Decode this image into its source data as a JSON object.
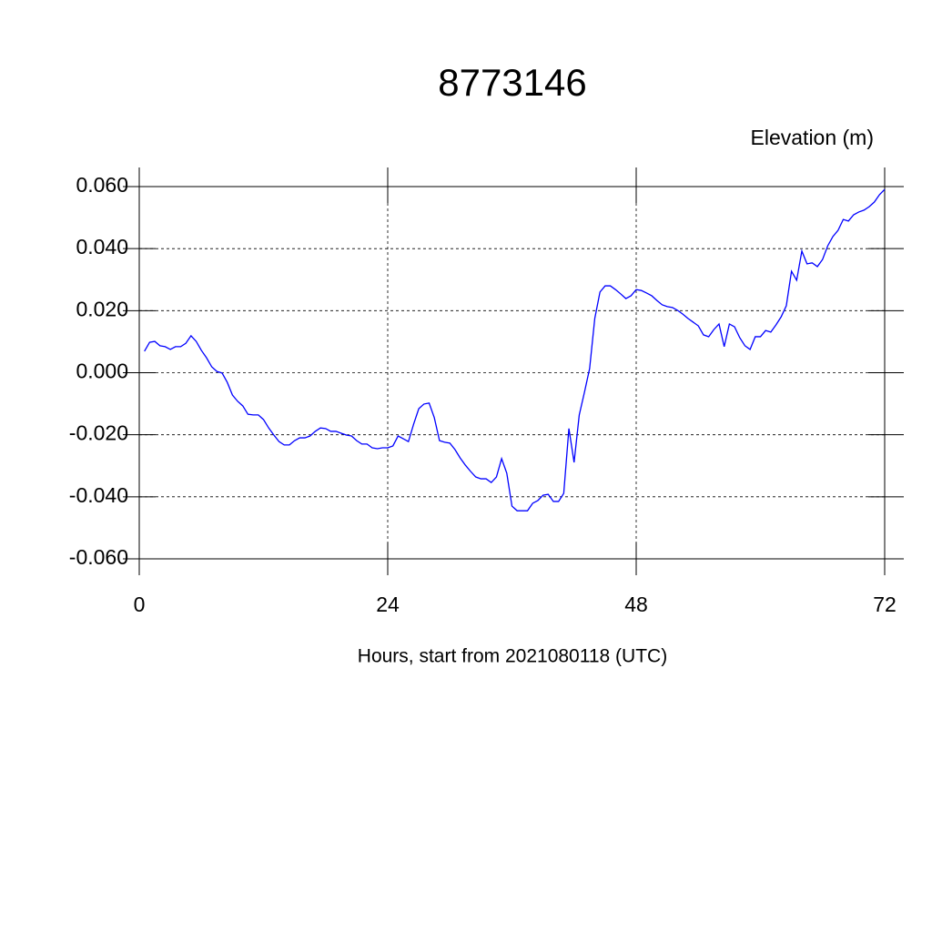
{
  "chart_data": {
    "type": "line",
    "title": "8773146",
    "y_label": "Elevation (m)",
    "x_label": "Hours, start from 2021080118 (UTC)",
    "xlim": [
      0,
      72
    ],
    "xticks": [
      0,
      24,
      48,
      72
    ],
    "ylim": [
      -0.06,
      0.06
    ],
    "yticks": [
      {
        "value": -0.06,
        "label": "-0.060"
      },
      {
        "value": -0.04,
        "label": "-0.040"
      },
      {
        "value": -0.02,
        "label": "-0.020"
      },
      {
        "value": 0,
        "label": "0.000"
      },
      {
        "value": 0.02,
        "label": "0.020"
      },
      {
        "value": 0.04,
        "label": "0.040"
      },
      {
        "value": 0.06,
        "label": "0.060"
      }
    ],
    "grid": true,
    "color": "#0000ff",
    "x": [
      0.5,
      1,
      1.5,
      2,
      2.5,
      3,
      3.5,
      4,
      4.5,
      5,
      5.5,
      6,
      6.5,
      7,
      7.5,
      8,
      8.5,
      9,
      9.5,
      10,
      10.5,
      11,
      11.5,
      12,
      12.5,
      13,
      13.5,
      14,
      14.5,
      15,
      15.5,
      16,
      16.5,
      17,
      17.5,
      18,
      18.5,
      19,
      19.5,
      20,
      20.5,
      21,
      21.5,
      22,
      22.5,
      23,
      23.5,
      24,
      24.5,
      25,
      25.5,
      26,
      26.5,
      27,
      27.5,
      28,
      28.5,
      29,
      29.5,
      30,
      30.5,
      31,
      31.5,
      32,
      32.5,
      33,
      33.5,
      34,
      34.5,
      35,
      35.5,
      36,
      36.5,
      37,
      37.5,
      38,
      38.5,
      39,
      39.5,
      40,
      40.5,
      41,
      41.5,
      42,
      42.5,
      43,
      43.5,
      44,
      44.5,
      45,
      45.5,
      46,
      46.5,
      47,
      47.5,
      48,
      48.5,
      49,
      49.5,
      50,
      50.5,
      51,
      51.5,
      52,
      52.5,
      53,
      53.5,
      54,
      54.5,
      55,
      55.5,
      56,
      56.5,
      57,
      57.5,
      58,
      58.5,
      59,
      59.5,
      60,
      60.5,
      61,
      61.5,
      62,
      62.5,
      63,
      63.5,
      64,
      64.5,
      65,
      65.5,
      66,
      66.5,
      67,
      67.5,
      68,
      68.5,
      69,
      69.5,
      70,
      70.5,
      71,
      71.5,
      72
    ],
    "values": [
      0.0069,
      0.0098,
      0.0101,
      0.0087,
      0.0084,
      0.0075,
      0.0084,
      0.0084,
      0.0095,
      0.0119,
      0.0101,
      0.0072,
      0.0048,
      0.0019,
      0.0004,
      -0.0001,
      -0.0031,
      -0.0072,
      -0.0092,
      -0.0107,
      -0.0134,
      -0.0136,
      -0.0136,
      -0.0151,
      -0.0178,
      -0.0201,
      -0.0222,
      -0.0233,
      -0.0233,
      -0.0219,
      -0.021,
      -0.021,
      -0.0204,
      -0.0189,
      -0.0178,
      -0.018,
      -0.0189,
      -0.0189,
      -0.0195,
      -0.0201,
      -0.0204,
      -0.0219,
      -0.023,
      -0.023,
      -0.0242,
      -0.0245,
      -0.0242,
      -0.0242,
      -0.0236,
      -0.0204,
      -0.0213,
      -0.0222,
      -0.0166,
      -0.0116,
      -0.0101,
      -0.0098,
      -0.0145,
      -0.0219,
      -0.0224,
      -0.0227,
      -0.0248,
      -0.0275,
      -0.0298,
      -0.0318,
      -0.0336,
      -0.0342,
      -0.0342,
      -0.0354,
      -0.0336,
      -0.0277,
      -0.0324,
      -0.043,
      -0.0445,
      -0.0445,
      -0.0445,
      -0.0421,
      -0.0412,
      -0.0395,
      -0.0392,
      -0.0415,
      -0.0415,
      -0.0389,
      -0.018,
      -0.0289,
      -0.0136,
      -0.0063,
      0.0013,
      0.0175,
      0.026,
      0.028,
      0.028,
      0.0268,
      0.0254,
      0.0239,
      0.0248,
      0.0268,
      0.0265,
      0.0257,
      0.0248,
      0.0233,
      0.0219,
      0.0213,
      0.021,
      0.0201,
      0.0189,
      0.0175,
      0.0163,
      0.0151,
      0.0122,
      0.0116,
      0.0139,
      0.0157,
      0.0084,
      0.0157,
      0.0148,
      0.0113,
      0.0087,
      0.0075,
      0.0116,
      0.0116,
      0.0136,
      0.0131,
      0.0154,
      0.018,
      0.0216,
      0.0327,
      0.0298,
      0.0392,
      0.0351,
      0.0354,
      0.0342,
      0.0365,
      0.0409,
      0.0439,
      0.0459,
      0.0494,
      0.0489,
      0.0509,
      0.0518,
      0.0524,
      0.0535,
      0.055,
      0.0574,
      0.0591
    ]
  }
}
